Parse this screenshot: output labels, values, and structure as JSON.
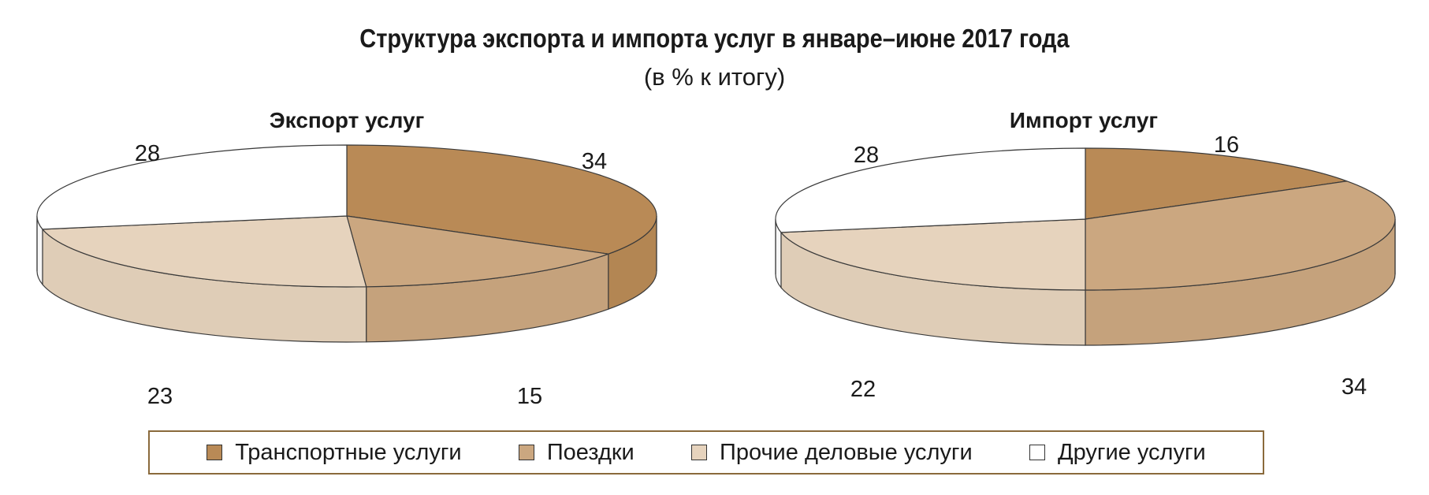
{
  "header": {
    "title": "Структура экспорта и импорта услуг в январе–июне 2017 года",
    "subtitle": "(в % к итогу)"
  },
  "colors": {
    "transport": "#b98a56",
    "travel": "#cba780",
    "business": "#e6d3bd",
    "other": "#ffffff",
    "edge": "#3a3a3a"
  },
  "legend": {
    "items": [
      {
        "label": "Транспортные услуги",
        "color": "#b98a56"
      },
      {
        "label": "Поездки",
        "color": "#cba780"
      },
      {
        "label": "Прочие деловые услуги",
        "color": "#e6d3bd"
      },
      {
        "label": "Другие услуги",
        "color": "#ffffff"
      }
    ]
  },
  "chart_data": [
    {
      "type": "pie",
      "title": "Экспорт услуг",
      "categories": [
        "Транспортные услуги",
        "Поездки",
        "Прочие деловые услуги",
        "Другие услуги"
      ],
      "values": [
        34,
        15,
        23,
        28
      ],
      "labels": [
        "34",
        "15",
        "23",
        "28"
      ]
    },
    {
      "type": "pie",
      "title": "Импорт услуг",
      "categories": [
        "Транспортные услуги",
        "Поездки",
        "Прочие деловые услуги",
        "Другие услуги"
      ],
      "values": [
        16,
        34,
        22,
        28
      ],
      "labels": [
        "16",
        "34",
        "22",
        "28"
      ]
    }
  ]
}
